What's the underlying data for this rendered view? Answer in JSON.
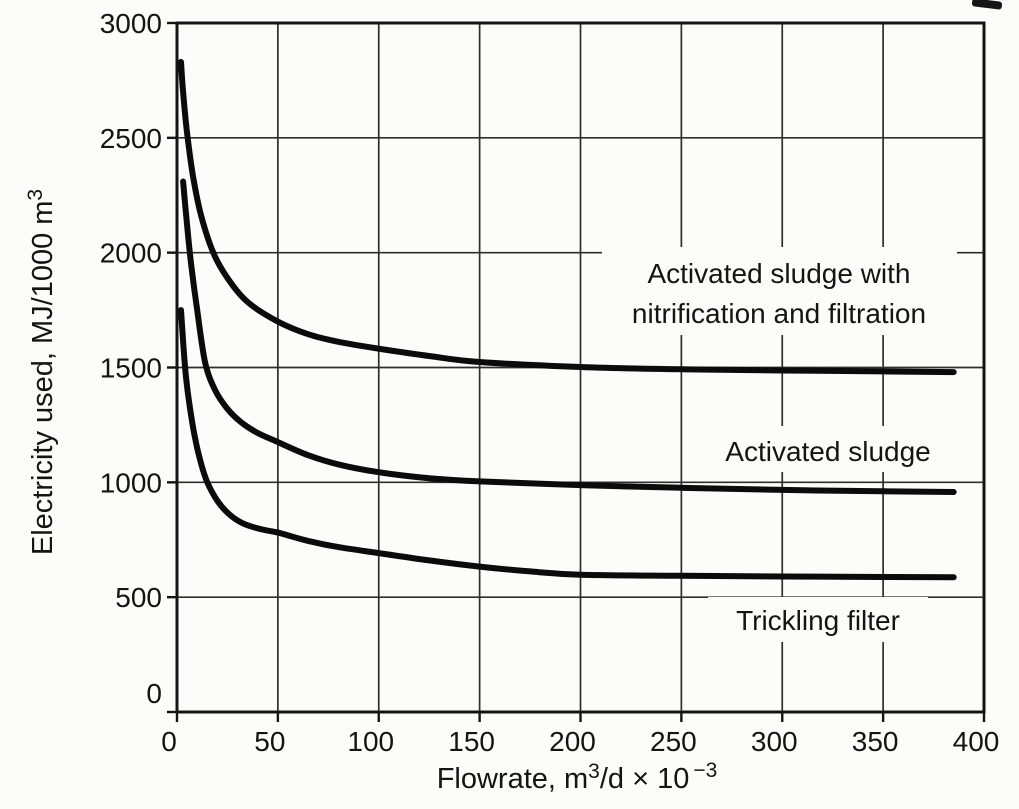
{
  "figure": {
    "paper_color": "#fcfcfb",
    "ink_color": "#141414",
    "curve_color": "#0b0b0b"
  },
  "chart_data": {
    "type": "line",
    "title": "",
    "xlabel": "Flowrate, m3/d × 10-3",
    "ylabel": "Electricity used, MJ/1000 m3",
    "xlabel_parts": {
      "pre": "Flowrate, m",
      "sup1": "3",
      "mid": "/d × 10",
      "sup2": "−3"
    },
    "ylabel_parts": {
      "pre": "Electricity used, MJ/1000 m",
      "sup": "3"
    },
    "xlim": [
      0,
      400
    ],
    "ylim": [
      0,
      3000
    ],
    "x_ticks": [
      0,
      50,
      100,
      150,
      200,
      250,
      300,
      350,
      400
    ],
    "y_ticks": [
      0,
      500,
      1000,
      1500,
      2000,
      2500,
      3000
    ],
    "grid": true,
    "legend_position": "inline-labels",
    "series": [
      {
        "id": "asnf",
        "name": "Activated sludge with nitrification and filtration",
        "label_lines": [
          "Activated sludge with",
          "nitrification and filtration"
        ],
        "points": [
          [
            2,
            2830
          ],
          [
            3,
            2700
          ],
          [
            5,
            2520
          ],
          [
            8,
            2330
          ],
          [
            12,
            2160
          ],
          [
            18,
            2000
          ],
          [
            25,
            1890
          ],
          [
            35,
            1785
          ],
          [
            50,
            1700
          ],
          [
            65,
            1645
          ],
          [
            80,
            1612
          ],
          [
            100,
            1582
          ],
          [
            125,
            1550
          ],
          [
            150,
            1524
          ],
          [
            200,
            1502
          ],
          [
            250,
            1492
          ],
          [
            300,
            1487
          ],
          [
            350,
            1483
          ],
          [
            385,
            1480
          ]
        ]
      },
      {
        "id": "as",
        "name": "Activated sludge",
        "label_lines": [
          "Activated sludge"
        ],
        "points": [
          [
            3,
            2310
          ],
          [
            5,
            2120
          ],
          [
            7,
            1950
          ],
          [
            10,
            1750
          ],
          [
            14,
            1520
          ],
          [
            19,
            1400
          ],
          [
            25,
            1320
          ],
          [
            32,
            1260
          ],
          [
            40,
            1215
          ],
          [
            50,
            1175
          ],
          [
            65,
            1118
          ],
          [
            80,
            1078
          ],
          [
            100,
            1044
          ],
          [
            125,
            1018
          ],
          [
            150,
            1004
          ],
          [
            200,
            988
          ],
          [
            250,
            976
          ],
          [
            300,
            967
          ],
          [
            350,
            961
          ],
          [
            385,
            958
          ]
        ]
      },
      {
        "id": "tf",
        "name": "Trickling filter",
        "label_lines": [
          "Trickling filter"
        ],
        "points": [
          [
            2,
            1750
          ],
          [
            4,
            1500
          ],
          [
            6,
            1350
          ],
          [
            9,
            1190
          ],
          [
            12,
            1080
          ],
          [
            15,
            1000
          ],
          [
            20,
            920
          ],
          [
            26,
            860
          ],
          [
            33,
            820
          ],
          [
            42,
            795
          ],
          [
            50,
            781
          ],
          [
            65,
            745
          ],
          [
            80,
            718
          ],
          [
            100,
            692
          ],
          [
            125,
            660
          ],
          [
            150,
            633
          ],
          [
            175,
            612
          ],
          [
            200,
            598
          ],
          [
            250,
            593
          ],
          [
            300,
            590
          ],
          [
            350,
            588
          ],
          [
            385,
            587
          ]
        ]
      }
    ]
  }
}
